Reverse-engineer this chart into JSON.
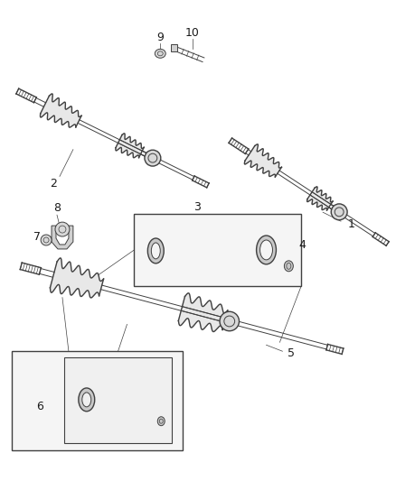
{
  "bg_color": "#ffffff",
  "line_color": "#404040",
  "label_color": "#1a1a1a",
  "figsize": [
    4.38,
    5.33
  ],
  "dpi": 100,
  "shaft1_color": "#555555",
  "boot_fill": "#e8e8e8",
  "box_fill": "#f0f0f0"
}
